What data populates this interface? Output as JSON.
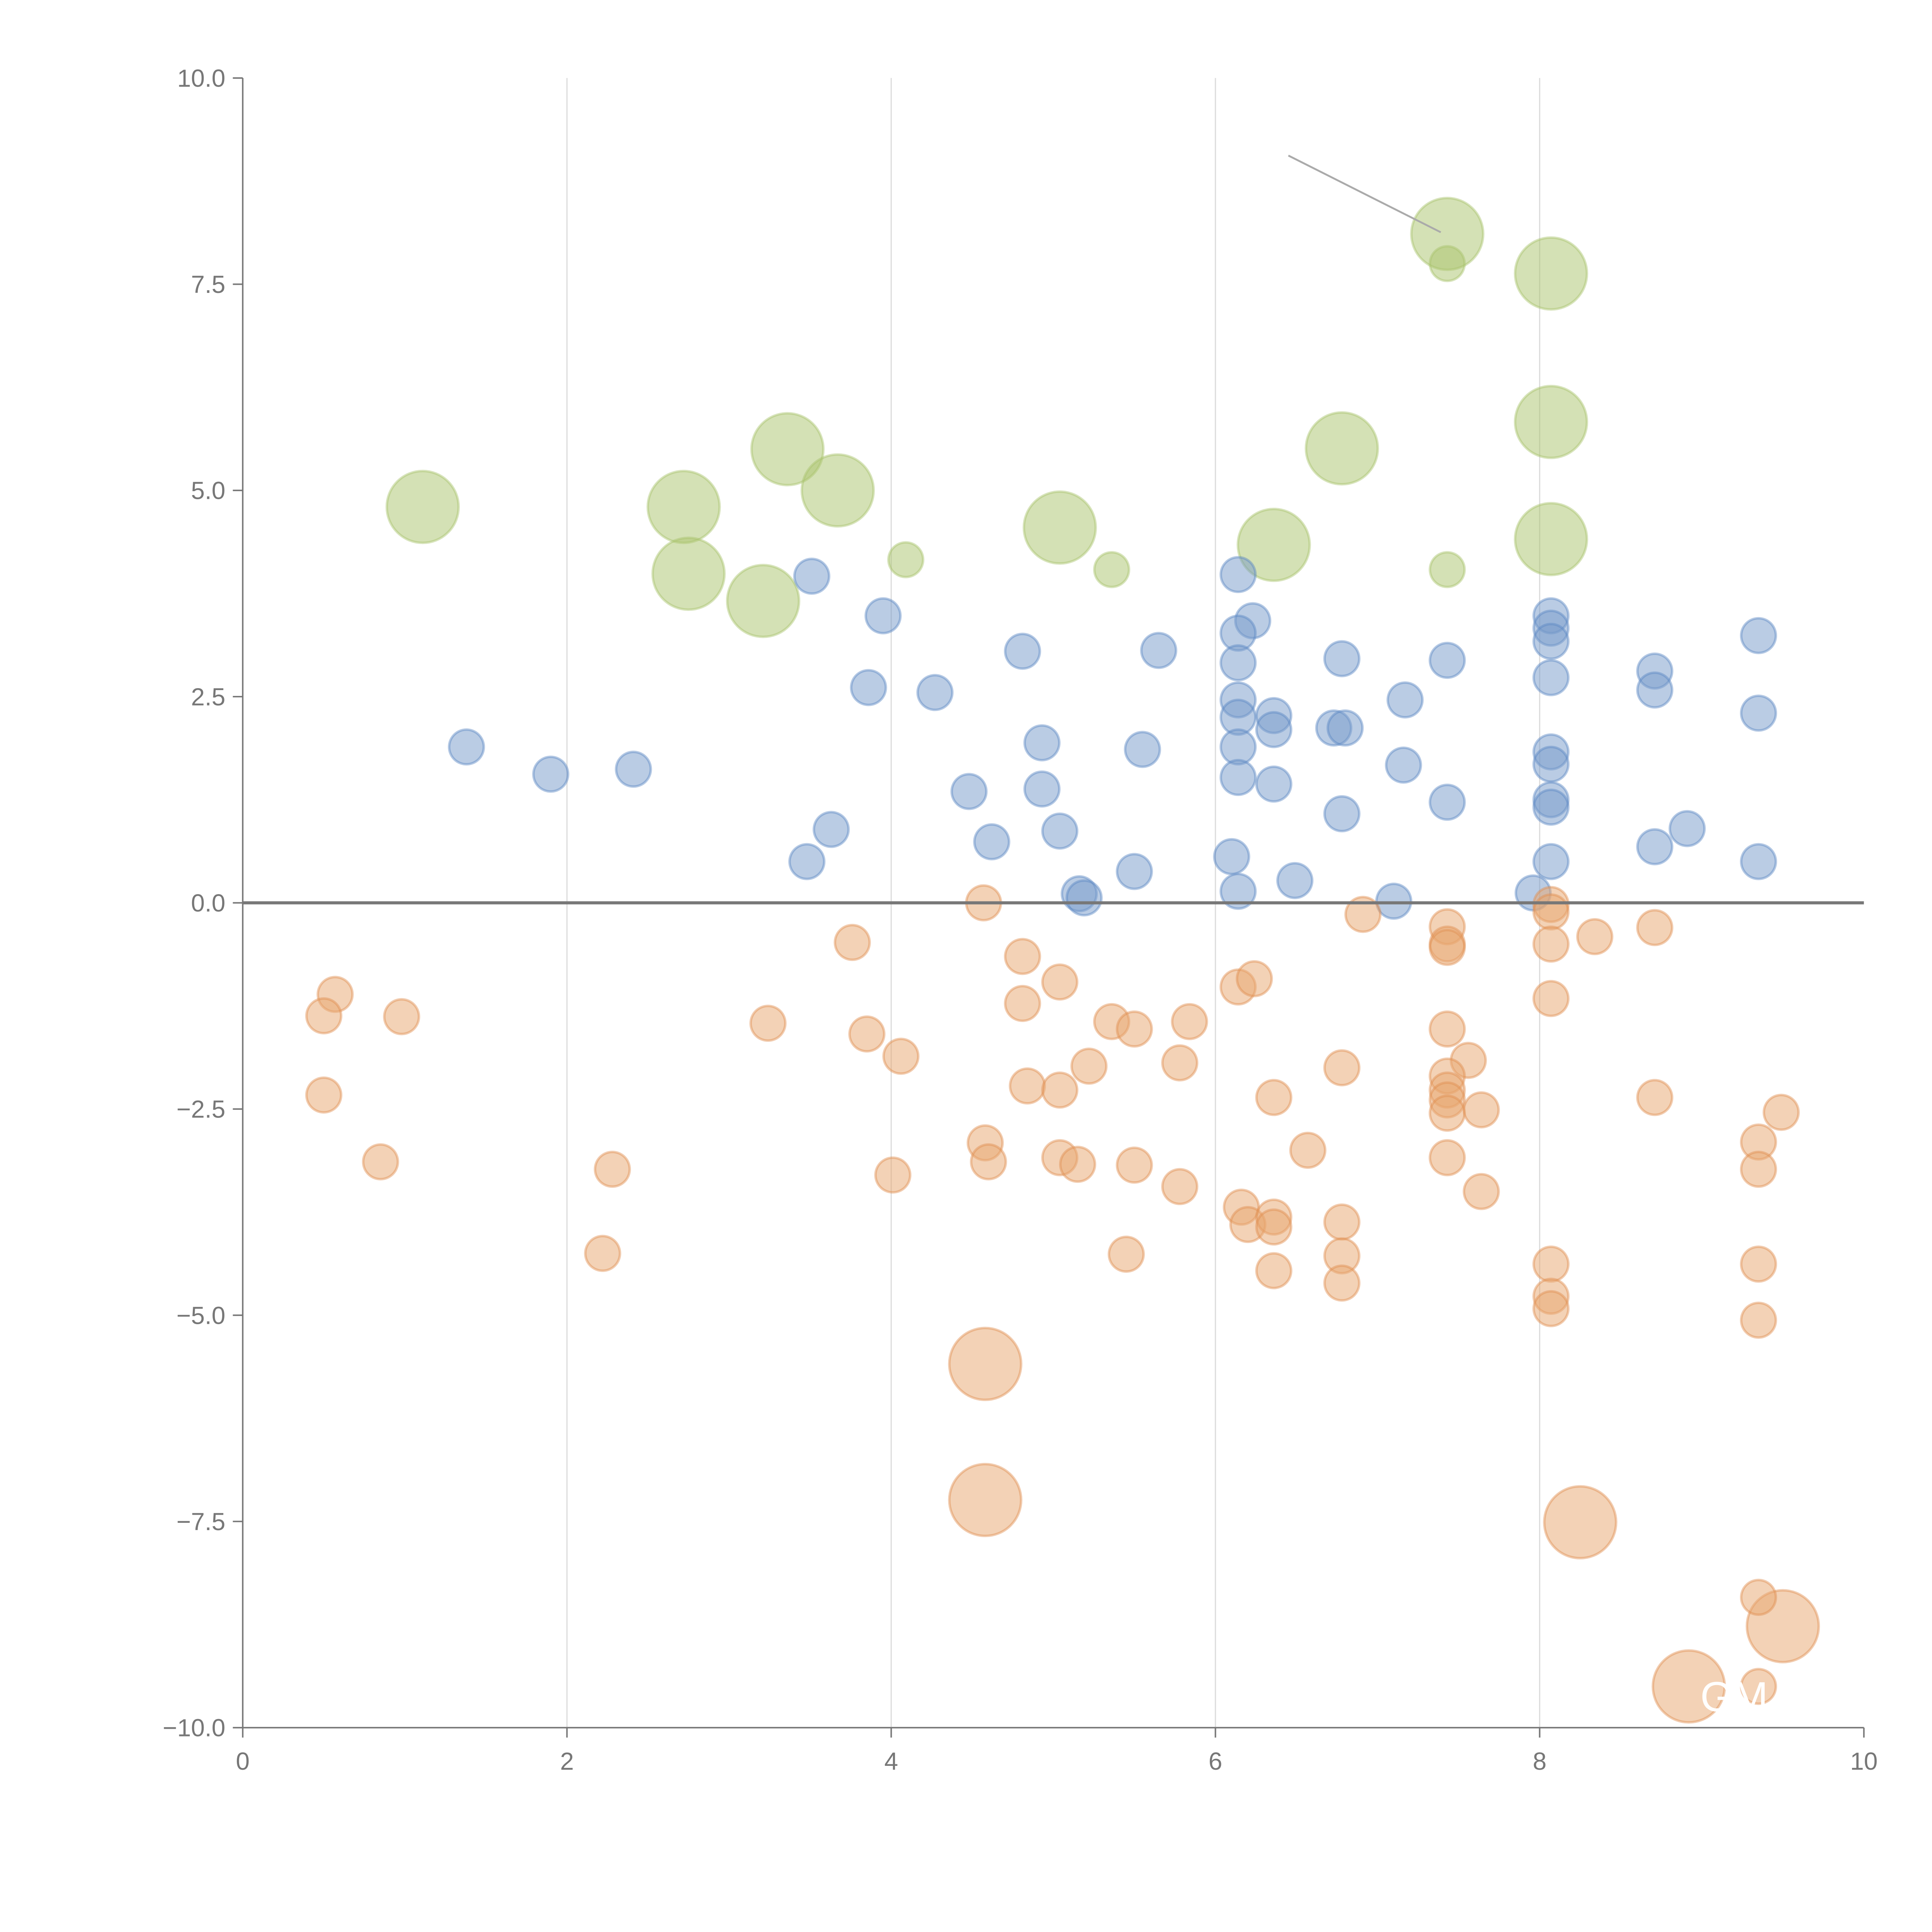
{
  "chart_data": {
    "type": "scatter",
    "title": "",
    "xlabel": "",
    "ylabel": "",
    "xlim": [
      0,
      10
    ],
    "ylim": [
      -10,
      10
    ],
    "grid": "vertical",
    "x_ticks": [
      "0",
      "2",
      "4",
      "6",
      "8",
      "10"
    ],
    "x_tick_values": [
      0,
      2,
      4,
      6,
      8,
      10
    ],
    "y_ticks": [
      "10.0",
      "7.5",
      "5.0",
      "2.5",
      "0.0",
      "−2.5",
      "−5.0",
      "−7.5",
      "−10.0"
    ],
    "y_tick_values": [
      10,
      7.5,
      5,
      2.5,
      0,
      -2.5,
      -5,
      -7.5,
      -10
    ],
    "size_note": "point triples are [x, y, size] with size 2 = large bubble, 1 = small bubble",
    "series": [
      {
        "name": "green",
        "color": "#a9c46c",
        "stroke": "#a9c46c",
        "points": [
          [
            7.43,
            8.11,
            2
          ],
          [
            7.43,
            7.75,
            1
          ],
          [
            8.07,
            7.63,
            2
          ],
          [
            8.07,
            5.83,
            2
          ],
          [
            6.78,
            5.51,
            2
          ],
          [
            3.36,
            5.5,
            2
          ],
          [
            3.67,
            5.0,
            2
          ],
          [
            1.11,
            4.8,
            2
          ],
          [
            2.72,
            4.8,
            2
          ],
          [
            5.04,
            4.55,
            2
          ],
          [
            6.36,
            4.34,
            2
          ],
          [
            8.07,
            4.41,
            2
          ],
          [
            4.09,
            4.16,
            1
          ],
          [
            5.36,
            4.04,
            1
          ],
          [
            7.43,
            4.04,
            1
          ],
          [
            2.75,
            3.99,
            2
          ],
          [
            3.21,
            3.66,
            2
          ]
        ]
      },
      {
        "name": "blue",
        "color": "#7699c9",
        "stroke": "#5b87c4",
        "points": [
          [
            3.51,
            3.96,
            1
          ],
          [
            3.95,
            3.48,
            1
          ],
          [
            4.81,
            3.05,
            1
          ],
          [
            5.65,
            3.06,
            1
          ],
          [
            6.14,
            3.98,
            1
          ],
          [
            6.23,
            3.42,
            1
          ],
          [
            6.14,
            3.27,
            1
          ],
          [
            6.14,
            2.91,
            1
          ],
          [
            6.78,
            2.96,
            1
          ],
          [
            7.43,
            2.94,
            1
          ],
          [
            8.07,
            3.48,
            1
          ],
          [
            8.07,
            3.33,
            1
          ],
          [
            8.07,
            3.17,
            1
          ],
          [
            8.07,
            2.73,
            1
          ],
          [
            9.35,
            3.24,
            1
          ],
          [
            8.71,
            2.81,
            1
          ],
          [
            8.71,
            2.58,
            1
          ],
          [
            9.35,
            2.3,
            1
          ],
          [
            3.86,
            2.61,
            1
          ],
          [
            4.27,
            2.55,
            1
          ],
          [
            6.14,
            2.46,
            1
          ],
          [
            6.14,
            2.25,
            1
          ],
          [
            6.36,
            2.27,
            1
          ],
          [
            6.36,
            2.1,
            1
          ],
          [
            6.73,
            2.12,
            1
          ],
          [
            6.8,
            2.12,
            1
          ],
          [
            7.17,
            2.46,
            1
          ],
          [
            1.38,
            1.89,
            1
          ],
          [
            1.9,
            1.56,
            1
          ],
          [
            2.41,
            1.62,
            1
          ],
          [
            4.93,
            1.94,
            1
          ],
          [
            5.55,
            1.86,
            1
          ],
          [
            6.14,
            1.89,
            1
          ],
          [
            6.14,
            1.52,
            1
          ],
          [
            6.36,
            1.44,
            1
          ],
          [
            4.93,
            1.38,
            1
          ],
          [
            4.48,
            1.35,
            1
          ],
          [
            7.16,
            1.67,
            1
          ],
          [
            7.43,
            1.22,
            1
          ],
          [
            6.78,
            1.08,
            1
          ],
          [
            8.07,
            1.83,
            1
          ],
          [
            8.07,
            1.68,
            1
          ],
          [
            8.07,
            1.25,
            1
          ],
          [
            8.07,
            1.16,
            1
          ],
          [
            3.63,
            0.89,
            1
          ],
          [
            5.04,
            0.87,
            1
          ],
          [
            4.62,
            0.74,
            1
          ],
          [
            8.71,
            0.68,
            1
          ],
          [
            8.91,
            0.9,
            1
          ],
          [
            3.48,
            0.5,
            1
          ],
          [
            5.5,
            0.38,
            1
          ],
          [
            6.1,
            0.56,
            1
          ],
          [
            6.14,
            0.14,
            1
          ],
          [
            6.49,
            0.27,
            1
          ],
          [
            5.16,
            0.11,
            1
          ],
          [
            5.19,
            0.06,
            1
          ],
          [
            7.1,
            0.02,
            1
          ],
          [
            7.96,
            0.12,
            1
          ],
          [
            8.07,
            0.5,
            1
          ],
          [
            9.35,
            0.5,
            1
          ]
        ]
      },
      {
        "name": "orange",
        "color": "#e8a56e",
        "stroke": "#e08f4f",
        "points": [
          [
            4.57,
            0.0,
            1
          ],
          [
            6.91,
            -0.14,
            1
          ],
          [
            8.07,
            -0.02,
            1
          ],
          [
            8.07,
            -0.11,
            1
          ],
          [
            7.43,
            -0.29,
            1
          ],
          [
            7.43,
            -0.5,
            1
          ],
          [
            7.43,
            -0.54,
            1
          ],
          [
            8.07,
            -0.5,
            1
          ],
          [
            8.34,
            -0.41,
            1
          ],
          [
            8.71,
            -0.3,
            1
          ],
          [
            3.76,
            -0.48,
            1
          ],
          [
            4.81,
            -0.65,
            1
          ],
          [
            5.04,
            -0.96,
            1
          ],
          [
            6.14,
            -1.02,
            1
          ],
          [
            6.24,
            -0.92,
            1
          ],
          [
            0.57,
            -1.11,
            1
          ],
          [
            0.5,
            -1.37,
            1
          ],
          [
            0.98,
            -1.38,
            1
          ],
          [
            3.24,
            -1.46,
            1
          ],
          [
            3.85,
            -1.59,
            1
          ],
          [
            4.06,
            -1.86,
            1
          ],
          [
            4.81,
            -1.22,
            1
          ],
          [
            5.36,
            -1.44,
            1
          ],
          [
            5.5,
            -1.53,
            1
          ],
          [
            5.84,
            -1.44,
            1
          ],
          [
            7.43,
            -1.53,
            1
          ],
          [
            8.07,
            -1.16,
            1
          ],
          [
            7.56,
            -1.91,
            1
          ],
          [
            5.22,
            -1.98,
            1
          ],
          [
            5.78,
            -1.94,
            1
          ],
          [
            6.78,
            -2.0,
            1
          ],
          [
            7.43,
            -2.1,
            1
          ],
          [
            7.43,
            -2.27,
            1
          ],
          [
            7.43,
            -2.39,
            1
          ],
          [
            7.43,
            -2.55,
            1
          ],
          [
            7.64,
            -2.51,
            1
          ],
          [
            4.84,
            -2.22,
            1
          ],
          [
            5.04,
            -2.27,
            1
          ],
          [
            0.5,
            -2.33,
            1
          ],
          [
            6.36,
            -2.36,
            1
          ],
          [
            8.71,
            -2.36,
            1
          ],
          [
            9.49,
            -2.54,
            1
          ],
          [
            9.35,
            -2.9,
            1
          ],
          [
            9.35,
            -3.23,
            1
          ],
          [
            0.85,
            -3.14,
            1
          ],
          [
            2.28,
            -3.23,
            1
          ],
          [
            4.01,
            -3.3,
            1
          ],
          [
            4.58,
            -2.91,
            1
          ],
          [
            4.6,
            -3.14,
            1
          ],
          [
            5.04,
            -3.09,
            1
          ],
          [
            5.15,
            -3.17,
            1
          ],
          [
            5.5,
            -3.18,
            1
          ],
          [
            5.78,
            -3.44,
            1
          ],
          [
            6.57,
            -3.0,
            1
          ],
          [
            7.43,
            -3.09,
            1
          ],
          [
            7.64,
            -3.5,
            1
          ],
          [
            6.16,
            -3.69,
            1
          ],
          [
            6.2,
            -3.9,
            1
          ],
          [
            6.36,
            -3.81,
            1
          ],
          [
            6.36,
            -3.93,
            1
          ],
          [
            6.78,
            -3.87,
            1
          ],
          [
            6.78,
            -4.28,
            1
          ],
          [
            6.36,
            -4.46,
            1
          ],
          [
            6.78,
            -4.61,
            1
          ],
          [
            2.22,
            -4.25,
            1
          ],
          [
            5.45,
            -4.26,
            1
          ],
          [
            8.07,
            -4.38,
            1
          ],
          [
            8.07,
            -4.77,
            1
          ],
          [
            8.07,
            -4.92,
            1
          ],
          [
            9.35,
            -4.38,
            1
          ],
          [
            9.35,
            -5.06,
            1
          ],
          [
            4.58,
            -5.59,
            2
          ],
          [
            4.58,
            -7.24,
            2
          ],
          [
            8.25,
            -7.51,
            2
          ],
          [
            9.5,
            -8.77,
            2
          ],
          [
            8.92,
            -9.5,
            2
          ],
          [
            9.35,
            -8.42,
            1
          ],
          [
            9.35,
            -9.5,
            1
          ]
        ]
      }
    ],
    "annotations": [
      {
        "text": "GM",
        "x": 9.2,
        "y": -9.62
      }
    ],
    "leader_line": {
      "from": [
        6.45,
        9.06
      ],
      "to": [
        7.39,
        8.13
      ]
    }
  }
}
